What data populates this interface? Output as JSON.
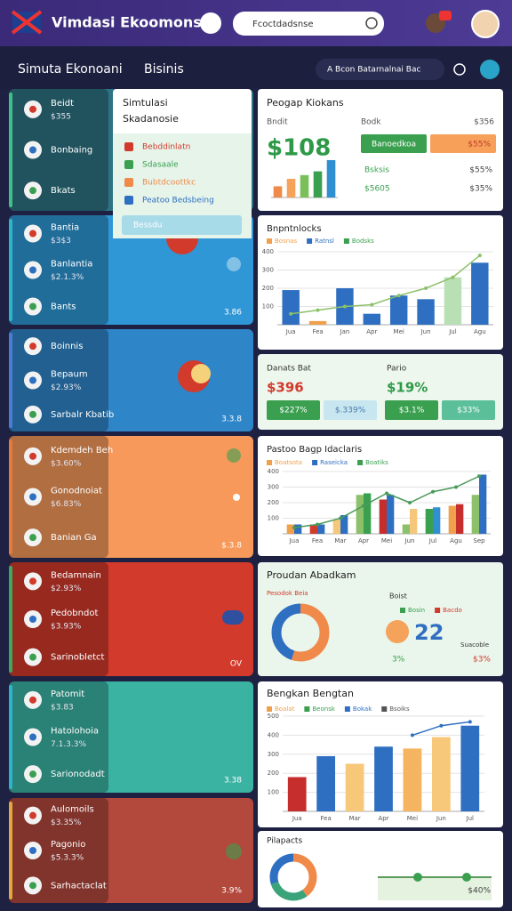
{
  "header": {
    "title": "Vimdasi Ekoomonsia",
    "search": "Fcoctdadsnse"
  },
  "subnav": {
    "title": "Simuta Ekonoani",
    "tab": "Bisinis",
    "search": "A Bcon Batarnalnai Bac"
  },
  "left_cards": [
    {
      "color": "#2d7383",
      "items": [
        {
          "title": "Beidt",
          "subtitle": "$355"
        },
        {
          "title": "Bonbaing"
        },
        {
          "title": "Bkats"
        }
      ]
    },
    {
      "color": "#2f97d6",
      "badge": "3.86",
      "items": [
        {
          "title": "Bantia",
          "subtitle": "$3$3"
        },
        {
          "title": "Banlantia",
          "subtitle": "$2.1.3%"
        },
        {
          "title": "Bants"
        }
      ]
    },
    {
      "color": "#2e85c8",
      "badge": "3.3.8",
      "items": [
        {
          "title": "Boinnis"
        },
        {
          "title": "Bepaum",
          "subtitle": "$2.93%"
        },
        {
          "title": "Sarbalr Kbatib"
        }
      ]
    },
    {
      "color": "#f6995a",
      "badge": "$.3.8",
      "items": [
        {
          "title": "Kdemdeh Beh",
          "subtitle": "$3.60%"
        },
        {
          "title": "Gonodnoiat",
          "subtitle": "$6.83%"
        },
        {
          "title": "Banian Ga"
        }
      ]
    },
    {
      "color": "#d23a2c",
      "badge": "OV",
      "items": [
        {
          "title": "Bedamnain",
          "subtitle": "$2.93%"
        },
        {
          "title": "Pedobndot",
          "subtitle": "$3.93%"
        },
        {
          "title": "Sarinobletct"
        }
      ]
    },
    {
      "color": "#3bb3a2",
      "badge": "3.38",
      "items": [
        {
          "title": "Patomit",
          "subtitle": "$3.83"
        },
        {
          "title": "Hatolohoia",
          "subtitle": "7.1.3.3%"
        },
        {
          "title": "Sarionodadt"
        }
      ]
    },
    {
      "color": "#b3483c",
      "badge": "3.9%",
      "items": [
        {
          "title": "Aulomoils",
          "subtitle": "$3.35%"
        },
        {
          "title": "Pagonio",
          "subtitle": "$5.3.3%"
        },
        {
          "title": "Sarhactaclat"
        }
      ]
    }
  ],
  "popup": {
    "title": [
      "Simtulasi",
      "Skadanosie"
    ],
    "items": [
      "Bebddinlatn",
      "Sdasaale",
      "Bubtdcoottkc",
      "Peatoo Bedsbeing"
    ],
    "footer": "Bessdu"
  },
  "revenue": {
    "title": "Peogap Kiokans",
    "label": "Bndit",
    "value": "$108",
    "side_label": "Bodk",
    "side_value": "$356",
    "buttons": [
      "Banoedkoa",
      "$55%"
    ],
    "rows": [
      [
        "Bsksis",
        "$55%"
      ],
      [
        "$5605",
        "$35%"
      ]
    ],
    "chart": {
      "ylim": [
        0,
        50
      ],
      "series": [
        {
          "type": "bar",
          "colors": [
            "#f08a4b",
            "#f5a25a",
            "#7bbf5a",
            "#3aa050",
            "#2f8fd0"
          ],
          "values": [
            15,
            25,
            30,
            35,
            50
          ]
        }
      ]
    }
  },
  "growth": {
    "title": "Bnpntnlocks",
    "legend": [
      "Bosnas",
      "Ratnsl",
      "Bodsks"
    ],
    "chart": {
      "ylim": [
        0,
        400
      ],
      "yticks": [
        100,
        200,
        300,
        400
      ],
      "categories": [
        "Jua",
        "Fea",
        "Jan",
        "Apr",
        "Mei",
        "Jun",
        "Jul",
        "Agu"
      ],
      "series": [
        {
          "type": "bar",
          "colors": [
            "#2f6fc1",
            "#f0a04b",
            "#2f6fc1",
            "#2f6fc1",
            "#2f6fc1",
            "#2f6fc1",
            "#b9e0b5",
            "#2f6fc1"
          ],
          "values": [
            190,
            20,
            200,
            60,
            160,
            140,
            260,
            340
          ]
        },
        {
          "type": "line",
          "color": "#8cc06a",
          "values": [
            60,
            80,
            100,
            110,
            160,
            200,
            260,
            380
          ]
        }
      ]
    }
  },
  "summary": {
    "items": [
      {
        "label": "Danats Bat",
        "value": "$396"
      },
      {
        "label": "Pario",
        "value": "$19%"
      }
    ],
    "pills": [
      "$227%",
      "$.339%",
      "$3.1%",
      "$33%"
    ]
  },
  "comparison": {
    "title": "Pastoo Bagp Idaclaris",
    "legend": [
      "Boatsota",
      "Raseicka",
      "Boatiks"
    ],
    "chart": {
      "ylim": [
        0,
        400
      ],
      "yticks": [
        100,
        200,
        300,
        400
      ],
      "categories": [
        "Jua",
        "Fea",
        "Mar",
        "Apr",
        "Mei",
        "Jun",
        "Jul",
        "Agu",
        "Sep"
      ],
      "series": [
        {
          "type": "bar",
          "colors": [
            "#f0a04b",
            "#d23a2c",
            "#f5c77a",
            "#8cc06a",
            "#c62d2d",
            "#8cc06a",
            "#3aa050",
            "#f0a04b",
            "#8cc06a"
          ],
          "values": [
            60,
            60,
            90,
            250,
            220,
            60,
            160,
            180,
            250
          ]
        },
        {
          "type": "bar",
          "colors": [
            "#2f6fc1",
            "#2f6fc1",
            "#2f6fc1",
            "#3aa050",
            "#2f6fc1",
            "#f5c77a",
            "#2f8fd0",
            "#c62d2d",
            "#2f6fc1"
          ],
          "values": [
            60,
            60,
            120,
            260,
            250,
            160,
            170,
            190,
            380
          ]
        },
        {
          "type": "line",
          "color": "#4a9a5a",
          "values": [
            40,
            60,
            100,
            180,
            260,
            200,
            270,
            300,
            370
          ]
        }
      ]
    }
  },
  "breakdown": {
    "title": "Proudan Abadkam",
    "tag": "Pesodok Beia",
    "label": "Boist",
    "legend": [
      "Bosin",
      "Bacdo"
    ],
    "value": "22",
    "note": "Suacoble",
    "stats": [
      "3%",
      "$3%"
    ],
    "donut": {
      "values": [
        55,
        45
      ],
      "colors": [
        "#f08a4b",
        "#2f6fc1"
      ]
    }
  },
  "trend": {
    "title": "Bengkan Bengtan",
    "legend": [
      "Boalat",
      "Beonsk",
      "Bokak",
      "Bsoiks"
    ],
    "chart": {
      "ylim": [
        0,
        500
      ],
      "yticks": [
        100,
        200,
        300,
        400,
        500
      ],
      "categories": [
        "Jua",
        "Fea",
        "Mar",
        "Apr",
        "Mei",
        "Jun",
        "Jul"
      ],
      "series": [
        {
          "type": "bar",
          "colors": [
            "#c62d2d",
            "#2f6fc1",
            "#f7c77a",
            "#2f6fc1",
            "#f5b560",
            "#f7c77a",
            "#2f6fc1"
          ],
          "values": [
            180,
            290,
            250,
            340,
            330,
            390,
            450
          ]
        },
        {
          "type": "line",
          "color": "#2f6fc1",
          "values": [
            null,
            null,
            null,
            null,
            400,
            450,
            470
          ]
        }
      ]
    }
  },
  "portfolio": {
    "title": "Pilapacts",
    "value": "$40%",
    "donut": {
      "values": [
        40,
        30,
        30
      ],
      "colors": [
        "#f08a4b",
        "#3aa37a",
        "#2f6fc1"
      ]
    }
  }
}
